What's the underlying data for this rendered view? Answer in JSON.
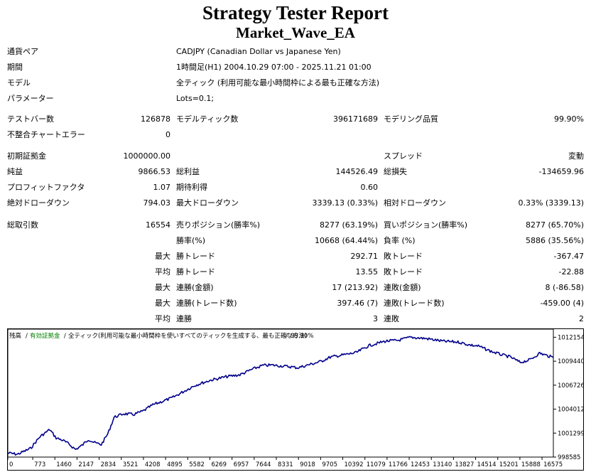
{
  "report": {
    "title": "Strategy Tester Report",
    "subtitle": "Market_Wave_EA"
  },
  "info": [
    {
      "label": "通貨ペア",
      "value": "CADJPY (Canadian Dollar vs Japanese Yen)"
    },
    {
      "label": "期間",
      "value": "1時間足(H1) 2004.10.29 07:00 - 2025.11.21 01:00"
    },
    {
      "label": "モデル",
      "value": "全ティック (利用可能な最小時間枠による最も正確な方法)"
    },
    {
      "label": "パラメーター",
      "value": "Lots=0.1;"
    }
  ],
  "stats": {
    "bars_label": "テストバー数",
    "bars": "126878",
    "ticks_label": "モデルティック数",
    "ticks": "396171689",
    "quality_label": "モデリング品質",
    "quality": "99.90%",
    "mismatch_label": "不整合チャートエラー",
    "mismatch": "0",
    "deposit_label": "初期証拠金",
    "deposit": "1000000.00",
    "spread_label": "スプレッド",
    "spread": "変動",
    "net_label": "純益",
    "net": "9866.53",
    "gross_profit_label": "総利益",
    "gross_profit": "144526.49",
    "gross_loss_label": "総損失",
    "gross_loss": "-134659.96",
    "pf_label": "プロフィットファクタ",
    "pf": "1.07",
    "payoff_label": "期待利得",
    "payoff": "0.60",
    "abs_dd_label": "絶対ドローダウン",
    "abs_dd": "794.03",
    "max_dd_label": "最大ドローダウン",
    "max_dd": "3339.13 (0.33%)",
    "rel_dd_label": "相対ドローダウン",
    "rel_dd": "0.33% (3339.13)",
    "trades_label": "総取引数",
    "trades": "16554",
    "short_label": "売りポジション(勝率%)",
    "short": "8277 (63.19%)",
    "long_label": "買いポジション(勝率%)",
    "long": "8277 (65.70%)",
    "win_label": "勝率(%)",
    "win": "10668 (64.44%)",
    "loss_label": "負率 (%)",
    "loss": "5886 (35.56%)",
    "max_label": "最大",
    "avg_label": "平均",
    "lwin_label": "勝トレード",
    "lwin": "292.71",
    "lloss_label": "敗トレード",
    "lloss": "-367.47",
    "awin_label": "勝トレード",
    "awin": "13.55",
    "aloss_label": "敗トレード",
    "aloss": "-22.88",
    "mcw_label": "連勝(金額)",
    "mcw": "17 (213.92)",
    "mcl_label": "連敗(金額)",
    "mcl": "8 (-86.58)",
    "mcp_label": "連勝(トレード数)",
    "mcp": "397.46 (7)",
    "mcls_label": "連敗(トレード数)",
    "mcls": "-459.00 (4)",
    "acw_label": "連勝",
    "acw": "3",
    "acl_label": "連敗",
    "acl": "2"
  },
  "chart_data": {
    "type": "line",
    "legend": {
      "balance": "残高",
      "separator": "/",
      "equity": "有効証拠金",
      "model": "全ティック(利用可能な最小時間枠を使いすべてのティックを生成する、最も正確な方法)",
      "quality": "99.90%"
    },
    "x_ticks": [
      0,
      773,
      1460,
      2147,
      2834,
      3521,
      4208,
      4895,
      5582,
      6269,
      6957,
      7644,
      8331,
      9018,
      9705,
      10392,
      11079,
      11766,
      12453,
      13140,
      13827,
      14514,
      15201,
      15888,
      16575
    ],
    "y_ticks": [
      998585,
      1001299,
      1004012,
      1006726,
      1009440,
      1012154
    ],
    "xlim": [
      0,
      16926
    ],
    "ylim": [
      998585,
      1013075
    ],
    "colors": {
      "balance": "#00008b",
      "equity": "#008000"
    },
    "series": [
      {
        "x": [
          0,
          300,
          700,
          1000,
          1300,
          1500,
          1700,
          1900,
          2100,
          2300,
          2500,
          2700,
          2900,
          3100,
          3300,
          3600,
          3900,
          4200,
          4500,
          4800,
          5100,
          5400,
          5800,
          6300,
          6800,
          7200,
          7600,
          7900,
          8200,
          8500,
          8800,
          9000,
          9300,
          9700,
          10000,
          10400,
          10800,
          11200,
          11700,
          12100,
          12500,
          13000,
          13500,
          14000,
          14300,
          14600,
          15000,
          15300,
          15600,
          15900,
          16200,
          16500,
          16926
        ],
        "y": [
          999050,
          998900,
          999550,
          1000900,
          1001700,
          1000750,
          1000500,
          1000050,
          999450,
          999900,
          1000600,
          1000200,
          1000000,
          1001200,
          1003100,
          1003500,
          1003400,
          1003800,
          1004500,
          1004900,
          1005300,
          1005900,
          1006700,
          1007300,
          1007700,
          1007900,
          1008550,
          1008950,
          1009000,
          1008900,
          1008800,
          1008700,
          1009000,
          1009400,
          1009900,
          1010150,
          1010400,
          1011200,
          1011700,
          1011800,
          1012150,
          1012000,
          1011700,
          1011600,
          1011300,
          1011150,
          1010550,
          1010200,
          1009900,
          1009300,
          1009600,
          1010350,
          1009850
        ]
      }
    ]
  }
}
